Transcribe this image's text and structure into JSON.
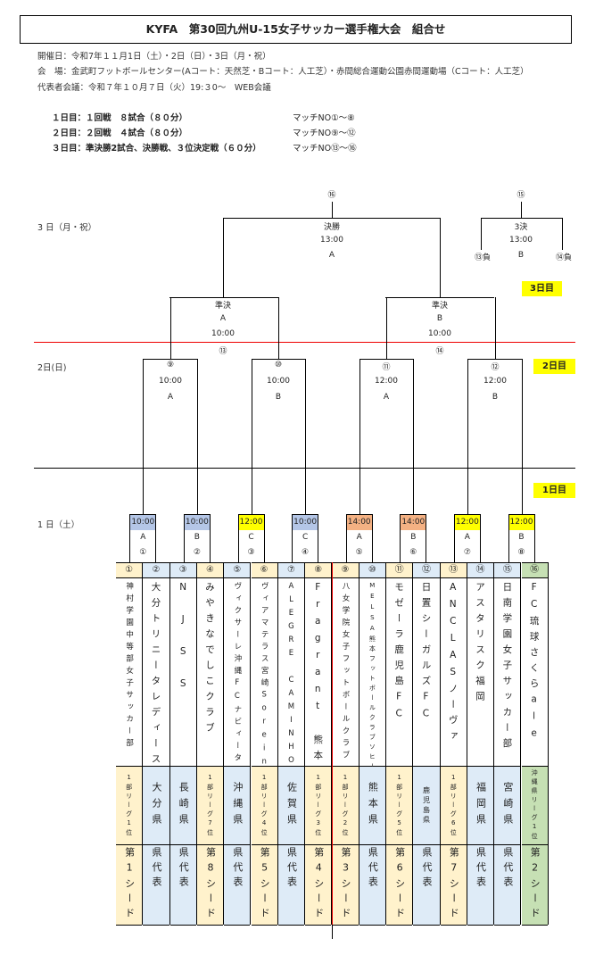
{
  "title": "KYFA　第30回九州U-15女子サッカー選手権大会　組合せ",
  "info": {
    "dates": "開催日：令和7年１１月1日（土）・2日（日）・3日（月・祝）",
    "venue": "会　場：金武町フットボールセンター(Aコート：天然芝・Bコート：人工芝）・赤間総合運動公園赤間運動場（Cコート：人工芝）",
    "meeting": "代表者会議：令和７年１０月７日（火）19:３0～　WEB会議"
  },
  "schedule": [
    {
      "day": "１日目：１回戦　８試合（８０分）",
      "matches": "マッチNO①～⑧"
    },
    {
      "day": "２日目：２回戦　４試合（８０分）",
      "matches": "マッチNO⑨～⑫"
    },
    {
      "day": "３日目：準決勝2試合、決勝戦、３位決定戦（６０分）",
      "matches": "マッチNO⑬～⑯"
    }
  ],
  "day_labels": {
    "day3": "3 日（月・祝）",
    "day2": "2日(日)",
    "day1": "1 日（土）"
  },
  "day_tags": {
    "day3": "3日目",
    "day2": "2日目",
    "day1": "1日目"
  },
  "colors": {
    "time_10": "#b4c6e7",
    "time_12": "#ffff00",
    "time_14": "#f4b183",
    "seed_yellow": "#fff2cc",
    "pref_blue": "#deebf7",
    "okinawa_green": "#c6e0b4",
    "divider_red": "#e00000"
  },
  "final": {
    "no": "⑯",
    "name": "決勝",
    "time": "13:00",
    "court": "A"
  },
  "third_place": {
    "no": "⑮",
    "name": "3決",
    "time": "13:00",
    "court": "B",
    "left": "⑬負",
    "right": "⑭負"
  },
  "semis": [
    {
      "name": "準決",
      "court": "A",
      "time": "10:00",
      "no": "⑬"
    },
    {
      "name": "準決",
      "court": "B",
      "time": "10:00",
      "no": "⑭"
    }
  ],
  "round2": [
    {
      "no": "⑨",
      "time": "10:00",
      "court": "A"
    },
    {
      "no": "⑩",
      "time": "10:00",
      "court": "B"
    },
    {
      "no": "⑪",
      "time": "12:00",
      "court": "A"
    },
    {
      "no": "⑫",
      "time": "12:00",
      "court": "B"
    }
  ],
  "round1": [
    {
      "time": "10:00",
      "court": "A",
      "no": "①"
    },
    {
      "time": "10:00",
      "court": "B",
      "no": "②"
    },
    {
      "time": "12:00",
      "court": "C",
      "no": "③"
    },
    {
      "time": "10:00",
      "court": "C",
      "no": "④"
    },
    {
      "time": "14:00",
      "court": "A",
      "no": "⑤"
    },
    {
      "time": "14:00",
      "court": "B",
      "no": "⑥"
    },
    {
      "time": "12:00",
      "court": "A",
      "no": "⑦"
    },
    {
      "time": "12:00",
      "court": "B",
      "no": "⑧"
    }
  ],
  "teams": [
    {
      "no": "①",
      "name": "神村学園中等部女子サッカー部",
      "pref": "1部リーグ1位",
      "seed": "第1シード",
      "color": "y"
    },
    {
      "no": "②",
      "name": "大分トリニータレディース",
      "pref": "大分県",
      "seed": "県代表",
      "color": "b"
    },
    {
      "no": "③",
      "name": "NJSS",
      "pref": "長崎県",
      "seed": "県代表",
      "color": "b"
    },
    {
      "no": "④",
      "name": "みやきなでしこクラブ",
      "pref": "1部リーグ7位",
      "seed": "第8シード",
      "color": "y"
    },
    {
      "no": "⑤",
      "name": "ヴィクサーレ沖縄FCナビィータ",
      "pref": "沖縄県",
      "seed": "県代表",
      "color": "b"
    },
    {
      "no": "⑥",
      "name": "ヴィアマテラス宮崎Soreina",
      "pref": "1部リーグ4位",
      "seed": "第5シード",
      "color": "y"
    },
    {
      "no": "⑦",
      "name": "ALEGRE CAMINHO",
      "pref": "佐賀県",
      "seed": "県代表",
      "color": "b"
    },
    {
      "no": "⑧",
      "name": "Fragrant 熊本",
      "pref": "1部リーグ3位",
      "seed": "第4シード",
      "color": "y"
    },
    {
      "no": "⑨",
      "name": "八女学院女子フットボールクラブ",
      "pref": "1部リーグ2位",
      "seed": "第3シード",
      "color": "y"
    },
    {
      "no": "⑩",
      "name": "MELSA熊本フットボールクラブソヒーア",
      "pref": "熊本県",
      "seed": "県代表",
      "color": "b"
    },
    {
      "no": "⑪",
      "name": "モゼーラ鹿児島FC",
      "pref": "1部リーグ5位",
      "seed": "第6シード",
      "color": "y"
    },
    {
      "no": "⑫",
      "name": "日置シーガルズFC",
      "pref": "鹿児島県",
      "seed": "県代表",
      "color": "b"
    },
    {
      "no": "⑬",
      "name": "ANCLASノーヴァ",
      "pref": "1部リーグ6位",
      "seed": "第7シード",
      "color": "y"
    },
    {
      "no": "⑭",
      "name": "アスタリスク福岡",
      "pref": "福岡県",
      "seed": "県代表",
      "color": "b"
    },
    {
      "no": "⑮",
      "name": "日南学園女子サッカー部",
      "pref": "宮崎県",
      "seed": "県代表",
      "color": "b"
    },
    {
      "no": "⑯",
      "name": "FC琉球さくらale",
      "pref": "沖縄県リーグ1位",
      "seed": "第2シード",
      "color": "g"
    }
  ]
}
